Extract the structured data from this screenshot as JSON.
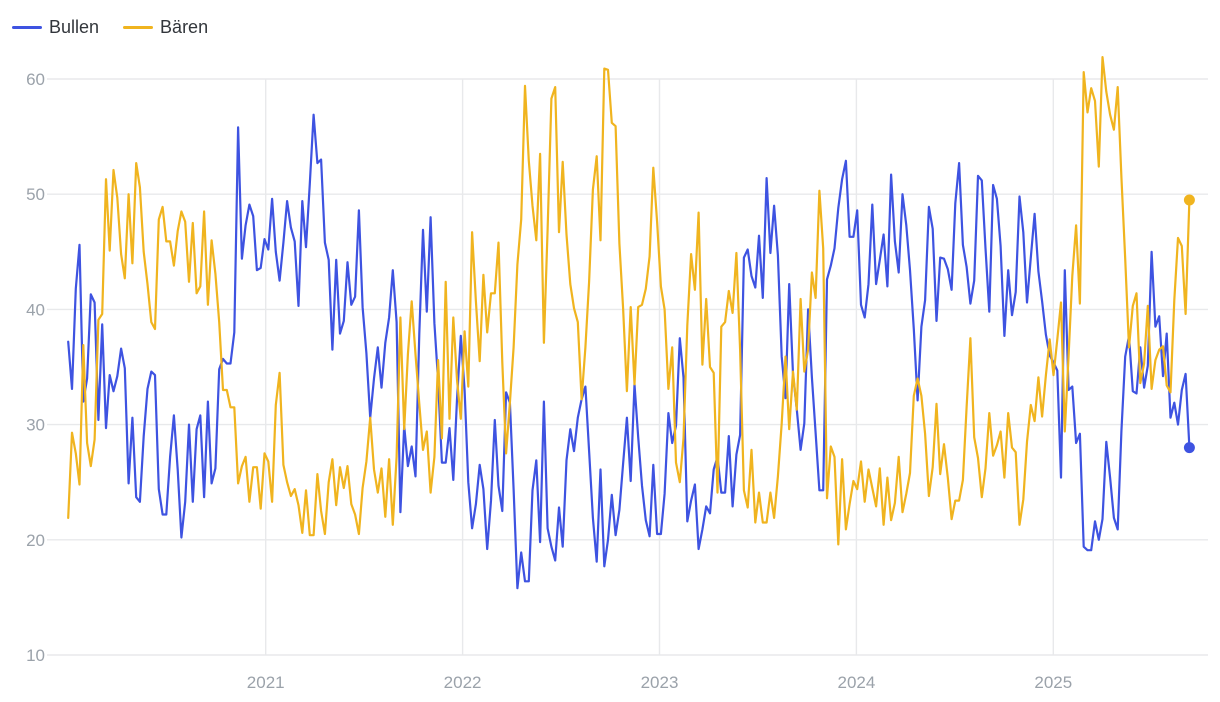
{
  "legend": {
    "items": [
      {
        "label": "Bullen",
        "color": "#3E53E1"
      },
      {
        "label": "Bären",
        "color": "#F0B41F"
      }
    ]
  },
  "colors": {
    "grid": "#E8E9EB",
    "axis_text": "#9BA2AA",
    "background": "#FFFFFF"
  },
  "chart_data": {
    "type": "line",
    "title": "",
    "xlabel": "",
    "ylabel": "",
    "x_unit": "weekly",
    "x_start": "2020-01-02",
    "x_end": "2025-09-18",
    "x_tick_labels": [
      "2021",
      "2022",
      "2023",
      "2024",
      "2025"
    ],
    "y_ticks": [
      10,
      20,
      30,
      40,
      50,
      60
    ],
    "ylim": [
      10,
      62
    ],
    "grid": true,
    "legend_position": "top-left",
    "end_dots": true,
    "series": [
      {
        "name": "Bullen",
        "color": "#3E53E1",
        "values": [
          37.2,
          33.1,
          41.8,
          45.6,
          32.0,
          34.0,
          41.3,
          40.6,
          30.4,
          38.7,
          29.7,
          34.3,
          32.9,
          34.2,
          36.6,
          34.9,
          24.9,
          30.6,
          23.7,
          23.3,
          29.0,
          33.1,
          34.6,
          34.3,
          24.4,
          22.2,
          22.2,
          27.2,
          30.8,
          26.1,
          20.2,
          23.3,
          30.0,
          23.3,
          29.6,
          30.8,
          23.7,
          32.0,
          24.9,
          26.2,
          34.8,
          35.7,
          35.3,
          35.3,
          38.0,
          55.8,
          44.4,
          47.3,
          49.1,
          48.1,
          43.4,
          43.6,
          46.1,
          45.2,
          49.6,
          45.0,
          42.5,
          45.8,
          49.4,
          47.1,
          45.9,
          40.3,
          49.4,
          45.4,
          50.9,
          56.9,
          52.7,
          53.0,
          45.8,
          44.3,
          36.5,
          44.3,
          37.9,
          39.0,
          44.1,
          40.4,
          41.1,
          48.6,
          40.2,
          36.2,
          30.6,
          34.0,
          36.7,
          33.2,
          37.1,
          39.3,
          43.4,
          38.9,
          22.4,
          29.9,
          26.4,
          28.1,
          25.5,
          37.9,
          46.9,
          39.8,
          48.0,
          38.8,
          33.8,
          26.7,
          26.7,
          29.7,
          25.2,
          32.2,
          37.7,
          33.0,
          25.0,
          21.0,
          23.1,
          26.5,
          24.4,
          19.2,
          23.4,
          30.4,
          24.7,
          22.5,
          32.8,
          31.9,
          24.4,
          15.8,
          18.9,
          16.4,
          16.4,
          24.3,
          26.9,
          19.8,
          32.0,
          21.0,
          19.4,
          18.2,
          22.8,
          19.4,
          26.9,
          29.6,
          27.7,
          30.6,
          32.2,
          33.3,
          27.7,
          21.9,
          18.1,
          26.1,
          17.7,
          20.0,
          23.9,
          20.4,
          22.6,
          26.6,
          30.6,
          25.1,
          33.5,
          28.9,
          24.7,
          21.7,
          20.3,
          26.5,
          20.5,
          20.5,
          24.0,
          31.0,
          28.4,
          29.9,
          37.5,
          34.1,
          21.6,
          23.4,
          24.8,
          19.2,
          20.9,
          22.9,
          22.3,
          26.1,
          27.2,
          24.1,
          24.1,
          29.0,
          22.9,
          27.4,
          29.1,
          44.5,
          45.2,
          42.9,
          41.9,
          46.4,
          41.0,
          51.4,
          44.9,
          49.0,
          44.7,
          35.9,
          32.3,
          42.2,
          34.4,
          31.3,
          27.8,
          30.1,
          40.0,
          34.1,
          29.3,
          24.3,
          24.3,
          42.6,
          43.8,
          45.3,
          48.8,
          51.3,
          52.9,
          46.3,
          46.3,
          48.6,
          40.4,
          39.3,
          42.2,
          49.1,
          42.2,
          44.3,
          46.5,
          42.0,
          51.7,
          45.9,
          43.2,
          50.0,
          47.3,
          43.4,
          38.3,
          32.1,
          38.5,
          40.8,
          48.9,
          47.0,
          39.0,
          44.5,
          44.4,
          43.5,
          41.7,
          49.2,
          52.7,
          45.6,
          43.7,
          40.5,
          42.5,
          51.6,
          51.2,
          45.3,
          39.8,
          50.8,
          49.6,
          45.5,
          37.7,
          43.4,
          39.5,
          41.5,
          49.8,
          46.7,
          40.6,
          44.5,
          48.3,
          43.3,
          40.7,
          37.8,
          36.0,
          35.4,
          34.7,
          25.4,
          43.4,
          33.0,
          33.3,
          28.4,
          29.2,
          19.4,
          19.1,
          19.1,
          21.6,
          20.0,
          21.8,
          28.5,
          25.4,
          21.9,
          20.9,
          29.4,
          35.9,
          37.7,
          32.9,
          32.7,
          36.7,
          33.2,
          35.1,
          45.0,
          38.5,
          39.4,
          34.2,
          37.9,
          30.6,
          31.9,
          30.0,
          33.0,
          34.4,
          28.0
        ]
      },
      {
        "name": "Bären",
        "color": "#F0B41F",
        "values": [
          21.9,
          29.3,
          27.5,
          24.8,
          36.9,
          28.4,
          26.4,
          28.7,
          39.1,
          39.6,
          51.3,
          45.1,
          52.1,
          49.7,
          44.8,
          42.7,
          50.0,
          44.0,
          52.7,
          50.6,
          45.0,
          42.2,
          38.9,
          38.3,
          47.8,
          48.9,
          45.9,
          45.9,
          43.8,
          46.8,
          48.5,
          47.6,
          42.4,
          47.5,
          41.4,
          42.0,
          48.5,
          40.4,
          46.0,
          43.1,
          38.9,
          33.0,
          33.0,
          31.5,
          31.5,
          24.9,
          26.4,
          27.2,
          23.3,
          26.3,
          26.3,
          22.7,
          27.5,
          26.8,
          23.3,
          31.7,
          34.5,
          26.5,
          25.0,
          23.8,
          24.4,
          23.0,
          20.6,
          24.3,
          20.4,
          20.4,
          25.7,
          22.5,
          20.5,
          25.0,
          27.0,
          23.0,
          26.3,
          24.5,
          26.4,
          23.1,
          22.2,
          20.5,
          24.5,
          26.8,
          30.6,
          26.1,
          24.1,
          26.2,
          22.0,
          27.0,
          21.3,
          27.2,
          39.3,
          29.6,
          36.1,
          40.7,
          36.1,
          31.8,
          27.8,
          29.4,
          24.1,
          27.2,
          35.6,
          28.8,
          42.4,
          30.5,
          39.3,
          33.9,
          30.5,
          38.1,
          33.3,
          46.7,
          40.7,
          35.5,
          43.0,
          38.0,
          41.4,
          41.4,
          45.8,
          35.4,
          27.5,
          31.9,
          36.7,
          43.9,
          47.8,
          59.4,
          52.9,
          49.0,
          46.0,
          53.5,
          37.1,
          46.9,
          58.3,
          59.3,
          46.7,
          52.8,
          46.5,
          42.2,
          40.1,
          38.9,
          32.2,
          36.7,
          42.4,
          50.4,
          53.3,
          46.0,
          60.9,
          60.8,
          56.2,
          55.9,
          45.7,
          40.1,
          32.9,
          40.2,
          33.5,
          40.2,
          40.4,
          41.8,
          44.6,
          52.3,
          47.6,
          42.0,
          40.0,
          33.1,
          36.7,
          26.7,
          25.0,
          28.8,
          38.6,
          44.8,
          41.7,
          48.4,
          35.2,
          40.9,
          35.0,
          34.5,
          24.1,
          38.5,
          38.9,
          41.6,
          39.7,
          44.9,
          36.5,
          24.3,
          22.8,
          27.8,
          21.5,
          24.1,
          21.5,
          21.5,
          24.1,
          21.9,
          25.5,
          30.1,
          35.9,
          29.6,
          34.6,
          31.3,
          40.9,
          34.6,
          36.5,
          43.2,
          41.0,
          50.3,
          45.3,
          23.6,
          28.1,
          27.2,
          19.6,
          27.0,
          20.9,
          23.1,
          25.1,
          24.4,
          26.8,
          23.3,
          26.1,
          24.5,
          22.9,
          26.2,
          21.3,
          25.4,
          21.7,
          23.2,
          27.2,
          22.4,
          24.0,
          25.8,
          32.5,
          34.0,
          32.5,
          29.2,
          23.8,
          26.3,
          31.8,
          25.7,
          28.3,
          25.4,
          21.8,
          23.4,
          23.4,
          25.2,
          31.5,
          37.5,
          28.9,
          27.1,
          23.7,
          26.2,
          31.0,
          27.3,
          28.2,
          29.4,
          25.4,
          31.0,
          28.0,
          27.6,
          21.3,
          23.5,
          28.5,
          31.7,
          30.3,
          34.1,
          30.7,
          34.3,
          37.4,
          34.3,
          37.4,
          40.6,
          29.4,
          36.0,
          42.9,
          47.3,
          40.5,
          60.6,
          57.1,
          59.2,
          58.1,
          52.4,
          61.9,
          58.9,
          56.9,
          55.6,
          59.3,
          51.5,
          44.4,
          36.7,
          40.3,
          41.4,
          33.6,
          35.3,
          40.3,
          33.1,
          35.6,
          36.5,
          36.8,
          33.4,
          32.8,
          40.8,
          46.2,
          45.5,
          39.6,
          49.5
        ]
      }
    ]
  }
}
